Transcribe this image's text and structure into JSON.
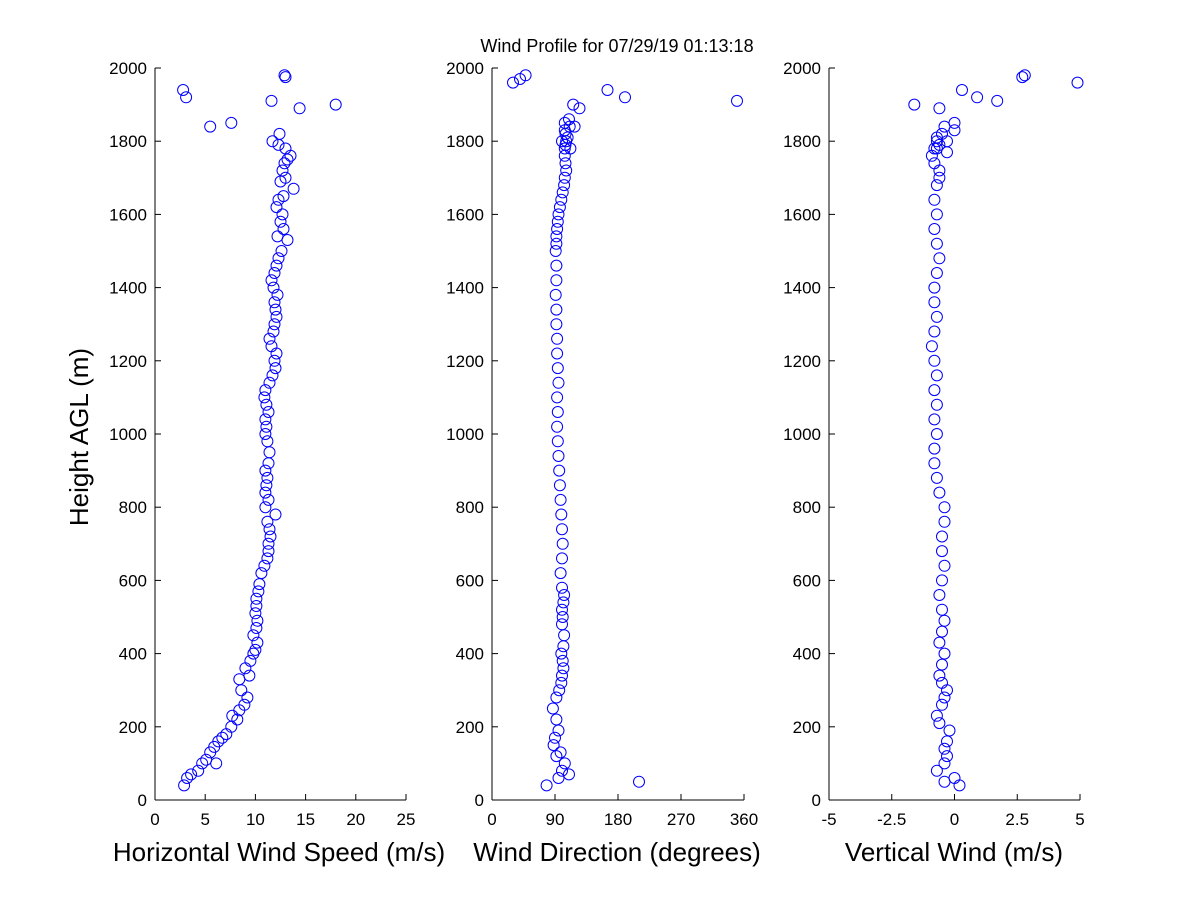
{
  "title": "Wind Profile for  07/29/19 01:13:18",
  "colors": {
    "marker": "#0000ff",
    "axis": "#000000",
    "background": "#ffffff"
  },
  "chart_data": [
    {
      "type": "scatter",
      "xlabel": "Horizontal Wind Speed (m/s)",
      "ylabel": "Height AGL (m)",
      "xlim": [
        0,
        25
      ],
      "ylim": [
        0,
        2000
      ],
      "xticks": [
        "0",
        "5",
        "10",
        "15",
        "20",
        "25"
      ],
      "yticks": [
        "0",
        "200",
        "400",
        "600",
        "800",
        "1000",
        "1200",
        "1400",
        "1600",
        "1800",
        "2000"
      ],
      "grid": false,
      "x": [
        2.9,
        3.2,
        4.3,
        3.6,
        4.7,
        5.1,
        6.1,
        5.5,
        5.9,
        6.3,
        6.7,
        7.1,
        7.6,
        8.2,
        7.7,
        8.4,
        8.9,
        9.2,
        8.6,
        8.4,
        9.4,
        9.0,
        9.5,
        9.8,
        10.0,
        10.2,
        9.8,
        10.1,
        10.2,
        10.0,
        10.1,
        10.1,
        10.3,
        10.4,
        10.6,
        10.9,
        11.2,
        11.3,
        11.3,
        11.5,
        12.0,
        11.4,
        11.2,
        11.0,
        11.3,
        11.0,
        11.1,
        11.2,
        11.0,
        11.3,
        11.4,
        11.2,
        11.0,
        11.1,
        11.0,
        11.3,
        11.1,
        10.9,
        11.0,
        11.4,
        11.7,
        12.0,
        11.9,
        12.1,
        11.6,
        11.4,
        11.8,
        11.9,
        12.1,
        12.0,
        11.9,
        12.2,
        11.8,
        11.6,
        11.9,
        12.1,
        12.3,
        12.6,
        13.2,
        12.2,
        12.8,
        12.5,
        12.7,
        12.1,
        12.3,
        12.8,
        12.5,
        13.8,
        13.0,
        12.7,
        12.9,
        13.2,
        13.5,
        13.0,
        12.4,
        11.7,
        12.3,
        7.6,
        5.5,
        14.4,
        18.0,
        11.6,
        3.1,
        2.8,
        13.0,
        12.9
      ],
      "y": [
        40,
        60,
        80,
        70,
        100,
        110,
        100,
        130,
        145,
        160,
        170,
        180,
        200,
        220,
        230,
        245,
        260,
        280,
        300,
        330,
        340,
        360,
        380,
        400,
        410,
        430,
        450,
        470,
        490,
        510,
        530,
        550,
        570,
        590,
        620,
        640,
        660,
        680,
        700,
        720,
        780,
        740,
        760,
        800,
        820,
        840,
        860,
        880,
        900,
        920,
        950,
        980,
        1000,
        1020,
        1040,
        1060,
        1080,
        1100,
        1120,
        1140,
        1160,
        1180,
        1200,
        1220,
        1240,
        1260,
        1280,
        1300,
        1320,
        1340,
        1360,
        1380,
        1400,
        1420,
        1440,
        1460,
        1480,
        1500,
        1530,
        1540,
        1560,
        1580,
        1600,
        1620,
        1640,
        1650,
        1690,
        1670,
        1700,
        1720,
        1740,
        1750,
        1760,
        1780,
        1820,
        1800,
        1790,
        1850,
        1840,
        1890,
        1900,
        1910,
        1920,
        1940,
        1975,
        1980
      ]
    },
    {
      "type": "scatter",
      "xlabel": "Wind Direction (degrees)",
      "ylabel": "",
      "xlim": [
        0,
        360
      ],
      "ylim": [
        0,
        2000
      ],
      "xticks": [
        "0",
        "90",
        "180",
        "270",
        "360"
      ],
      "yticks": [
        "0",
        "200",
        "400",
        "600",
        "800",
        "1000",
        "1200",
        "1400",
        "1600",
        "1800",
        "2000"
      ],
      "grid": false,
      "x": [
        78,
        210,
        95,
        110,
        100,
        104,
        92,
        98,
        88,
        90,
        95,
        92,
        87,
        92,
        96,
        99,
        100,
        102,
        101,
        99,
        102,
        103,
        100,
        101,
        100,
        102,
        103,
        100,
        98,
        100,
        101,
        100,
        99,
        98,
        97,
        96,
        95,
        94,
        93,
        94,
        93,
        95,
        94,
        93,
        93,
        92,
        92,
        91,
        92,
        92,
        91,
        92,
        92,
        93,
        94,
        95,
        97,
        99,
        101,
        103,
        104,
        106,
        105,
        104,
        104,
        105,
        106,
        108,
        105,
        104,
        111,
        104,
        110,
        118,
        100,
        116,
        125,
        112,
        30,
        40,
        48,
        165,
        190,
        350
      ],
      "y": [
        40,
        50,
        60,
        70,
        80,
        100,
        120,
        130,
        150,
        170,
        190,
        220,
        250,
        280,
        300,
        320,
        340,
        360,
        380,
        400,
        420,
        450,
        480,
        500,
        520,
        540,
        560,
        580,
        620,
        660,
        700,
        740,
        780,
        820,
        860,
        900,
        940,
        980,
        1020,
        1060,
        1100,
        1140,
        1180,
        1220,
        1260,
        1300,
        1340,
        1380,
        1420,
        1460,
        1500,
        1520,
        1540,
        1560,
        1580,
        1600,
        1620,
        1640,
        1660,
        1680,
        1700,
        1720,
        1740,
        1760,
        1780,
        1790,
        1800,
        1810,
        1820,
        1830,
        1840,
        1850,
        1860,
        1840,
        1800,
        1900,
        1890,
        1780,
        1960,
        1970,
        1980,
        1940,
        1920,
        1910
      ]
    },
    {
      "type": "scatter",
      "xlabel": "Vertical Wind (m/s)",
      "ylabel": "",
      "xlim": [
        -5,
        5
      ],
      "ylim": [
        0,
        2000
      ],
      "xticks": [
        "-5",
        "-2.5",
        "0",
        "2.5",
        "5"
      ],
      "yticks": [
        "0",
        "200",
        "400",
        "600",
        "800",
        "1000",
        "1200",
        "1400",
        "1600",
        "1800",
        "2000"
      ],
      "grid": false,
      "x": [
        0.2,
        -0.4,
        0.0,
        -0.7,
        -0.4,
        -0.3,
        -0.4,
        -0.3,
        -0.2,
        -0.6,
        -0.7,
        -0.5,
        -0.4,
        -0.3,
        -0.5,
        -0.6,
        -0.5,
        -0.4,
        -0.6,
        -0.5,
        -0.4,
        -0.5,
        -0.6,
        -0.5,
        -0.4,
        -0.5,
        -0.5,
        -0.4,
        -0.4,
        -0.6,
        -0.7,
        -0.8,
        -0.8,
        -0.7,
        -0.8,
        -0.7,
        -0.8,
        -0.7,
        -0.8,
        -0.9,
        -0.8,
        -0.7,
        -0.8,
        -0.8,
        -0.7,
        -0.6,
        -0.7,
        -0.8,
        -0.7,
        -0.8,
        -0.7,
        -0.6,
        -0.6,
        -0.8,
        -0.9,
        -0.8,
        -0.7,
        -0.5,
        -0.4,
        -0.7,
        0.0,
        0.0,
        -0.3,
        -0.7,
        -0.6,
        -0.3,
        0.3,
        0.9,
        1.7,
        2.7,
        2.8,
        4.9,
        -1.6,
        -0.6
      ],
      "y": [
        40,
        50,
        60,
        80,
        100,
        120,
        140,
        160,
        190,
        210,
        230,
        260,
        280,
        300,
        320,
        340,
        370,
        400,
        430,
        460,
        490,
        520,
        560,
        600,
        640,
        680,
        720,
        760,
        800,
        840,
        880,
        920,
        960,
        1000,
        1040,
        1080,
        1120,
        1160,
        1200,
        1240,
        1280,
        1320,
        1360,
        1400,
        1440,
        1480,
        1520,
        1560,
        1600,
        1640,
        1680,
        1700,
        1720,
        1740,
        1760,
        1780,
        1800,
        1820,
        1840,
        1780,
        1850,
        1830,
        1800,
        1810,
        1790,
        1770,
        1940,
        1920,
        1910,
        1975,
        1980,
        1960,
        1900,
        1890
      ]
    }
  ]
}
